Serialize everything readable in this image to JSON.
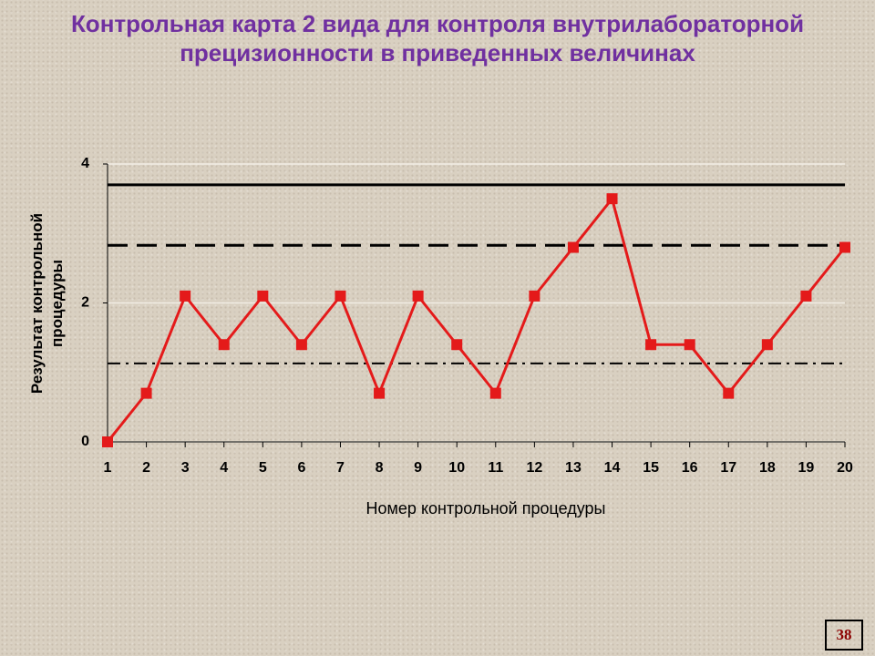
{
  "chart_data": {
    "type": "line",
    "title": "Контрольная карта 2 вида для контроля внутрилабораторной прецизионности в приведенных величинах",
    "x_label": "Номер контрольной процедуры",
    "y_label": "Результат контрольной процедуры",
    "x": [
      1,
      2,
      3,
      4,
      5,
      6,
      7,
      8,
      9,
      10,
      11,
      12,
      13,
      14,
      15,
      16,
      17,
      18,
      19,
      20
    ],
    "xlim": [
      1,
      20
    ],
    "xticks": [
      1,
      2,
      3,
      4,
      5,
      6,
      7,
      8,
      9,
      10,
      11,
      12,
      13,
      14,
      15,
      16,
      17,
      18,
      19,
      20
    ],
    "ylim": [
      0,
      4
    ],
    "yticks": [
      0,
      2,
      4
    ],
    "grid": true,
    "series": [
      {
        "color": "#e41a1a",
        "values": [
          0,
          0.7,
          2.1,
          1.4,
          2.1,
          1.4,
          2.1,
          0.7,
          2.1,
          1.4,
          0.7,
          2.1,
          2.8,
          3.5,
          1.4,
          1.4,
          0.7,
          1.4,
          2.1,
          2.8
        ]
      }
    ],
    "reference_lines": [
      {
        "value": 3.7,
        "style": "solid"
      },
      {
        "value": 2.83,
        "style": "dashed"
      },
      {
        "value": 1.13,
        "style": "dashdot"
      }
    ]
  },
  "page_number": "38"
}
